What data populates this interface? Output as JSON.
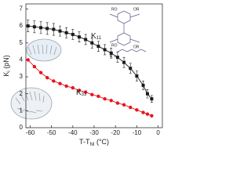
{
  "chart_data": {
    "type": "line",
    "x_label": [
      "T-T",
      "NI",
      " (°C)"
    ],
    "y_label": [
      "K",
      "i",
      " (pN)"
    ],
    "xlim": [
      -62,
      2
    ],
    "xticks": [
      -60,
      -50,
      -40,
      -30,
      -20,
      -10,
      0
    ],
    "ylim": [
      0,
      7.3
    ],
    "yticks": [
      0,
      1,
      2,
      3,
      4,
      5,
      6,
      7
    ],
    "series": [
      {
        "name": [
          "K",
          "11"
        ],
        "color": "#1a1a1a",
        "marker": "square",
        "x": [
          -61,
          -58,
          -55,
          -52,
          -49,
          -46,
          -43,
          -40,
          -37,
          -34,
          -31,
          -28,
          -25,
          -22,
          -19,
          -16,
          -13,
          -10,
          -7,
          -5,
          -3
        ],
        "values": [
          6.0,
          5.95,
          5.9,
          5.85,
          5.8,
          5.7,
          5.6,
          5.5,
          5.35,
          5.2,
          5.0,
          4.8,
          4.6,
          4.4,
          4.15,
          3.85,
          3.5,
          3.05,
          2.5,
          2.0,
          1.7
        ],
        "errors": [
          0.35,
          0.35,
          0.35,
          0.35,
          0.35,
          0.3,
          0.3,
          0.3,
          0.3,
          0.3,
          0.3,
          0.3,
          0.3,
          0.3,
          0.3,
          0.3,
          0.3,
          0.3,
          0.25,
          0.25,
          0.2
        ]
      },
      {
        "name": [
          "K",
          "33"
        ],
        "color": "#e8141e",
        "marker": "circle",
        "x": [
          -61,
          -58,
          -55,
          -52,
          -49,
          -46,
          -43,
          -40,
          -37,
          -34,
          -31,
          -28,
          -25,
          -22,
          -19,
          -16,
          -13,
          -10,
          -7,
          -5,
          -3
        ],
        "values": [
          4.0,
          3.6,
          3.25,
          2.95,
          2.75,
          2.6,
          2.45,
          2.35,
          2.2,
          2.1,
          1.95,
          1.85,
          1.7,
          1.6,
          1.45,
          1.35,
          1.2,
          1.05,
          0.9,
          0.8,
          0.7
        ]
      }
    ],
    "inset_labels": [
      "RO",
      "OR",
      "RO",
      "OR",
      "R ="
    ]
  }
}
